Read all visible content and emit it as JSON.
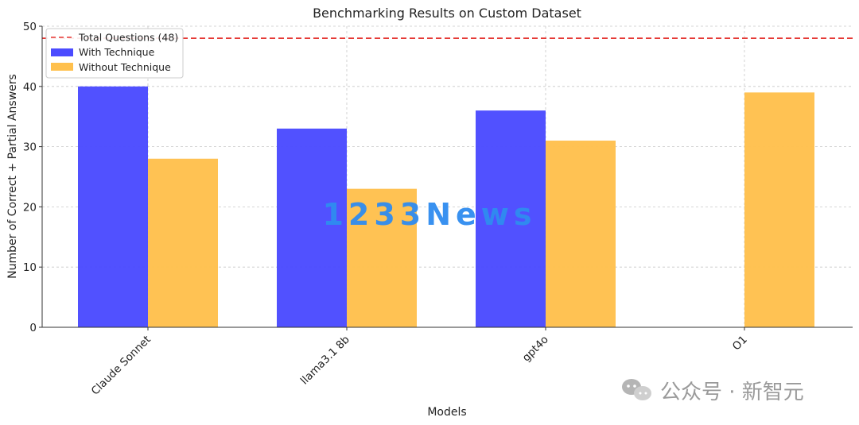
{
  "chart_data": {
    "type": "bar",
    "title": "Benchmarking Results on Custom Dataset",
    "xlabel": "Models",
    "ylabel": "Number of Correct + Partial Answers",
    "categories": [
      "Claude Sonnet",
      "llama3.1 8b",
      "gpt4o",
      "O1"
    ],
    "series": [
      {
        "name": "With Technique",
        "color": "#4b4bff",
        "values": [
          40,
          33,
          36,
          0
        ]
      },
      {
        "name": "Without Technique",
        "color": "#ffc04d",
        "values": [
          28,
          23,
          31,
          39
        ]
      }
    ],
    "reference_line": {
      "label": "Total Questions (48)",
      "value": 48,
      "color": "#e53935",
      "style": "dashed"
    },
    "ylim": [
      0,
      50
    ],
    "yticks": [
      0,
      10,
      20,
      30,
      40,
      50
    ],
    "grid": true,
    "legend_position": "top-left"
  },
  "watermarks": {
    "center_text": "1233News",
    "corner_text": "公众号 · 新智元",
    "corner_icon": "wechat-icon"
  }
}
